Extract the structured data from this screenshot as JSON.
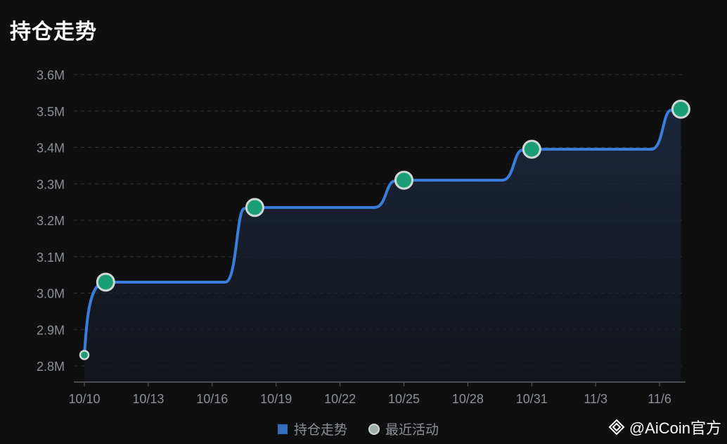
{
  "title": "持仓走势",
  "legend": {
    "series_label": "持仓走势",
    "points_label": "最近活动"
  },
  "watermark": "@AiCoin官方",
  "colors": {
    "background": "#0f0f10",
    "line": "#3b7ddd",
    "point_fill": "#1a9e76",
    "point_stroke": "#cfd8d4",
    "grid": "#2e3238",
    "axis": "#5c6068"
  },
  "chart_data": {
    "type": "line",
    "title": "持仓走势",
    "xlabel": "",
    "ylabel": "",
    "x_ticks": [
      "10/10",
      "10/13",
      "10/16",
      "10/19",
      "10/22",
      "10/25",
      "10/28",
      "10/31",
      "11/3",
      "11/6"
    ],
    "y_ticks": [
      "2.8M",
      "2.9M",
      "3.0M",
      "3.1M",
      "3.2M",
      "3.3M",
      "3.4M",
      "3.5M",
      "3.6M"
    ],
    "ylim": [
      2.8,
      3.6
    ],
    "y_unit": "M",
    "grid": true,
    "legend_position": "bottom-center",
    "series": [
      {
        "name": "持仓走势",
        "style": "step-smooth-area",
        "points": [
          {
            "x": "10/10",
            "y": 2.83
          },
          {
            "x": "10/11",
            "y": 3.03
          },
          {
            "x": "10/18",
            "y": 3.235
          },
          {
            "x": "10/25",
            "y": 3.31
          },
          {
            "x": "10/31",
            "y": 3.395
          },
          {
            "x": "11/7",
            "y": 3.505
          }
        ]
      },
      {
        "name": "最近活动",
        "style": "markers",
        "points": [
          {
            "x": "10/10",
            "y": 2.83
          },
          {
            "x": "10/11",
            "y": 3.03
          },
          {
            "x": "10/18",
            "y": 3.235
          },
          {
            "x": "10/25",
            "y": 3.31
          },
          {
            "x": "10/31",
            "y": 3.395
          },
          {
            "x": "11/7",
            "y": 3.505
          }
        ]
      }
    ]
  }
}
